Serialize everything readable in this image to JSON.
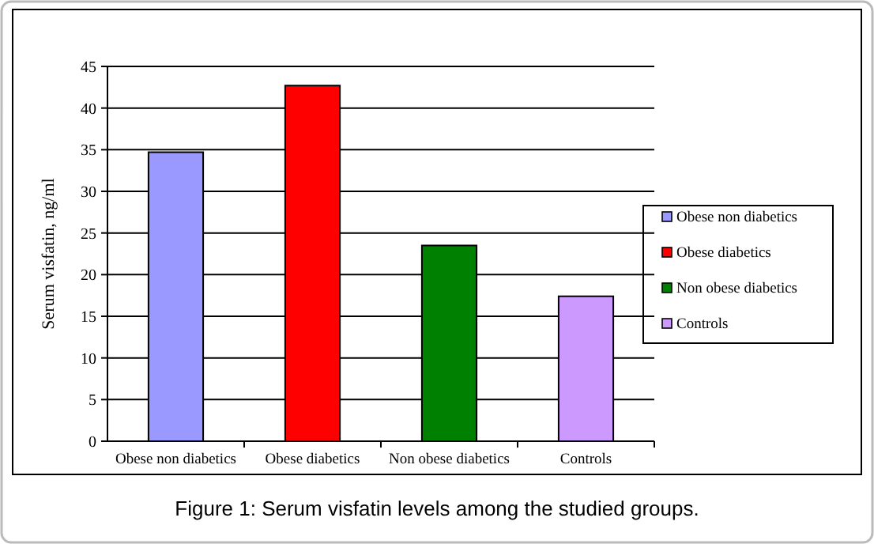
{
  "chart_data": {
    "type": "bar",
    "title": "Figure 1: Serum visfatin levels among the studied groups.",
    "ylabel": "Serum visfatin, ng/ml",
    "categories": [
      "Obese non diabetics",
      "Obese diabetics",
      "Non obese diabetics",
      "Controls"
    ],
    "series": [
      {
        "name": "Obese non diabetics",
        "color": "#9999ff",
        "values": [
          34.7,
          null,
          null,
          null
        ]
      },
      {
        "name": "Obese diabetics",
        "color": "#ff0000",
        "values": [
          null,
          42.7,
          null,
          null
        ]
      },
      {
        "name": "Non obese diabetics",
        "color": "#008000",
        "values": [
          null,
          null,
          23.5,
          null
        ]
      },
      {
        "name": "Controls",
        "color": "#cc99ff",
        "values": [
          null,
          null,
          null,
          17.4
        ]
      }
    ],
    "stacked": true,
    "ylim": [
      0,
      45
    ],
    "yticks": [
      0,
      5,
      10,
      15,
      20,
      25,
      30,
      35,
      40,
      45
    ],
    "grid": "y",
    "legend": "right"
  }
}
